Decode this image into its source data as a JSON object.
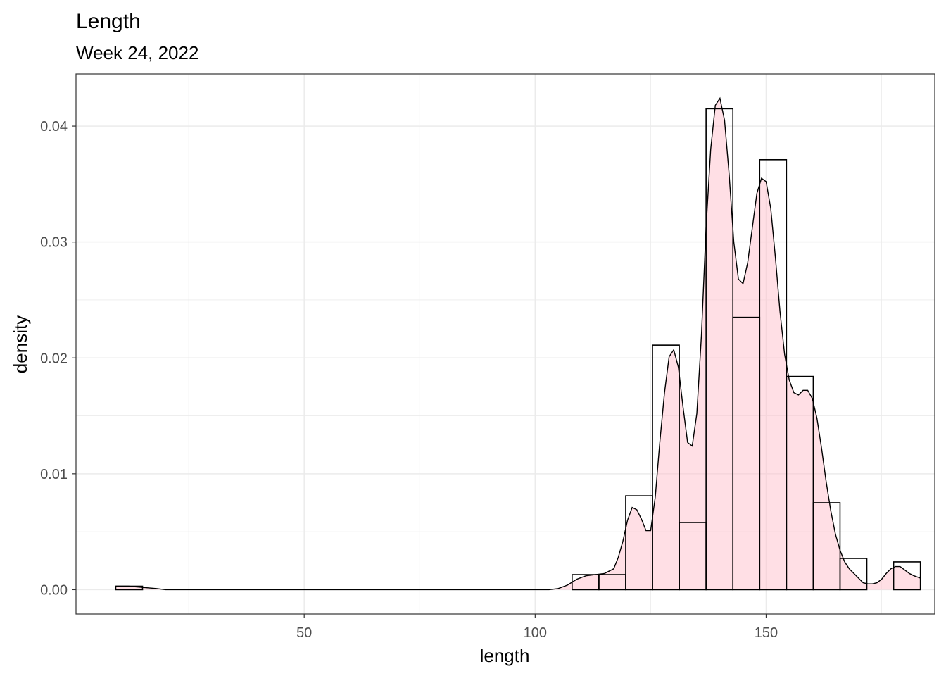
{
  "chart_data": {
    "type": "histogram",
    "title": "Length",
    "subtitle": "Week 24, 2022",
    "xlabel": "length",
    "ylabel": "density",
    "xlim": [
      0.6,
      186.5
    ],
    "ylim": [
      -0.0021,
      0.0445
    ],
    "x_ticks": [
      50,
      100,
      150
    ],
    "x_tick_labels": [
      "50",
      "100",
      "150"
    ],
    "y_ticks": [
      0.0,
      0.01,
      0.02,
      0.03,
      0.04
    ],
    "y_tick_labels": [
      "0.00",
      "0.01",
      "0.02",
      "0.03",
      "0.04"
    ],
    "grid": true,
    "bin_width": 5.8,
    "histogram_bins": [
      {
        "xmin": 9.2,
        "xmax": 15.0,
        "density": 0.0003
      },
      {
        "xmin": 108.0,
        "xmax": 113.8,
        "density": 0.0013
      },
      {
        "xmin": 113.8,
        "xmax": 119.6,
        "density": 0.0013
      },
      {
        "xmin": 119.6,
        "xmax": 125.4,
        "density": 0.0081
      },
      {
        "xmin": 125.4,
        "xmax": 131.2,
        "density": 0.0211
      },
      {
        "xmin": 131.2,
        "xmax": 137.0,
        "density": 0.0058
      },
      {
        "xmin": 137.0,
        "xmax": 142.8,
        "density": 0.0415
      },
      {
        "xmin": 142.8,
        "xmax": 148.6,
        "density": 0.0235
      },
      {
        "xmin": 148.6,
        "xmax": 154.4,
        "density": 0.0371
      },
      {
        "xmin": 154.4,
        "xmax": 160.2,
        "density": 0.0184
      },
      {
        "xmin": 160.2,
        "xmax": 166.0,
        "density": 0.0075
      },
      {
        "xmin": 166.0,
        "xmax": 171.8,
        "density": 0.0027
      },
      {
        "xmin": 171.8,
        "xmax": 177.6,
        "density": 0.0
      },
      {
        "xmin": 177.6,
        "xmax": 183.4,
        "density": 0.0024
      }
    ],
    "density_curve": {
      "x": [
        9.2,
        12,
        15,
        18,
        20,
        25,
        50,
        75,
        100,
        103,
        105,
        107,
        109,
        111,
        113,
        115,
        117,
        118,
        119,
        120,
        121,
        122,
        123,
        124,
        125,
        126,
        127,
        128,
        129,
        130,
        131,
        132,
        133,
        134,
        135,
        136,
        137,
        138,
        139,
        140,
        141,
        142,
        143,
        144,
        145,
        146,
        147,
        148,
        149,
        150,
        151,
        152,
        153,
        154,
        155,
        156,
        157,
        158,
        159,
        160,
        161,
        162,
        163,
        164,
        165,
        166,
        167,
        168,
        169,
        170,
        171,
        172,
        173,
        174,
        175,
        176,
        177,
        178,
        179,
        180,
        181,
        182,
        183.4
      ],
      "y": [
        0.0003,
        0.0003,
        0.0002,
        0.0001,
        0.0,
        0.0,
        0.0,
        0.0,
        0.0,
        0.0,
        0.0001,
        0.0004,
        0.0009,
        0.0012,
        0.0013,
        0.0014,
        0.0018,
        0.0028,
        0.0042,
        0.006,
        0.0071,
        0.0069,
        0.0061,
        0.0051,
        0.0051,
        0.008,
        0.0128,
        0.017,
        0.0201,
        0.0207,
        0.0192,
        0.0158,
        0.0127,
        0.0124,
        0.0152,
        0.022,
        0.0313,
        0.038,
        0.0418,
        0.0424,
        0.0405,
        0.0358,
        0.03,
        0.0268,
        0.0264,
        0.0282,
        0.0312,
        0.0342,
        0.0355,
        0.0352,
        0.0329,
        0.0287,
        0.024,
        0.0203,
        0.0181,
        0.017,
        0.0168,
        0.0172,
        0.0172,
        0.0165,
        0.0148,
        0.0122,
        0.0093,
        0.0068,
        0.0048,
        0.0034,
        0.0024,
        0.0018,
        0.0014,
        0.001,
        0.0006,
        0.0005,
        0.0005,
        0.0006,
        0.0009,
        0.0014,
        0.0018,
        0.002,
        0.002,
        0.0017,
        0.0014,
        0.0012,
        0.001
      ]
    },
    "colors": {
      "bar_outline": "#000000",
      "density_fill": "#ffc0cb",
      "density_fill_alpha": 0.5,
      "density_line": "#000000",
      "grid_major": "#ebebeb",
      "panel_border": "#333333",
      "tick_label": "#4d4d4d"
    }
  }
}
